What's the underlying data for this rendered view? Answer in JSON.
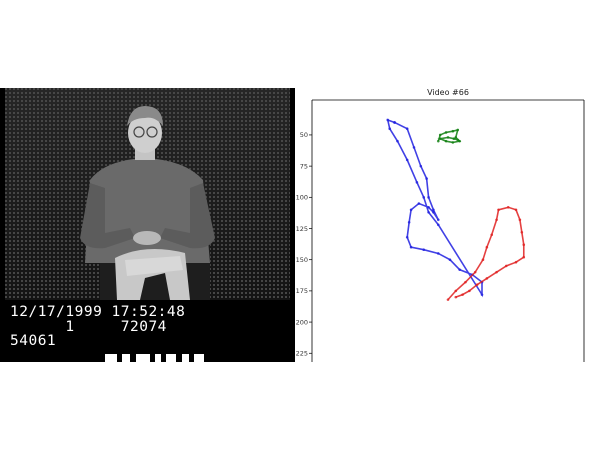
{
  "video": {
    "datetime_line": "12/17/1999 17:52:48",
    "counter_line": "      1     72074",
    "frame_line": "54061"
  },
  "chart_data": {
    "type": "line",
    "title": "Video #66",
    "xlabel": "",
    "ylabel": "",
    "y_axis_inverted": true,
    "ylim": [
      230,
      20
    ],
    "yticks": [
      50,
      75,
      100,
      125,
      150,
      175,
      200,
      225
    ],
    "x_ticks_visible": false,
    "grid": false,
    "series": [
      {
        "color": "#2020e0",
        "points": [
          [
            105,
            40
          ],
          [
            118,
            45
          ],
          [
            125,
            60
          ],
          [
            132,
            75
          ],
          [
            138,
            85
          ],
          [
            140,
            100
          ],
          [
            145,
            110
          ],
          [
            150,
            118
          ],
          [
            145,
            112
          ],
          [
            140,
            108
          ],
          [
            130,
            105
          ],
          [
            122,
            110
          ],
          [
            120,
            120
          ],
          [
            118,
            132
          ],
          [
            122,
            140
          ],
          [
            135,
            142
          ],
          [
            150,
            145
          ],
          [
            162,
            150
          ],
          [
            172,
            158
          ],
          [
            185,
            162
          ],
          [
            195,
            168
          ],
          [
            195,
            178
          ],
          [
            150,
            122
          ],
          [
            140,
            112
          ],
          [
            135,
            100
          ],
          [
            128,
            88
          ],
          [
            118,
            70
          ],
          [
            108,
            55
          ],
          [
            100,
            45
          ],
          [
            98,
            38
          ],
          [
            105,
            40
          ]
        ]
      },
      {
        "color": "#e02020",
        "points": [
          [
            160,
            182
          ],
          [
            168,
            175
          ],
          [
            178,
            168
          ],
          [
            188,
            160
          ],
          [
            196,
            150
          ],
          [
            200,
            140
          ],
          [
            205,
            130
          ],
          [
            210,
            118
          ],
          [
            212,
            110
          ],
          [
            222,
            108
          ],
          [
            230,
            110
          ],
          [
            234,
            118
          ],
          [
            236,
            128
          ],
          [
            238,
            138
          ],
          [
            238,
            148
          ],
          [
            230,
            152
          ],
          [
            220,
            155
          ],
          [
            210,
            160
          ],
          [
            200,
            165
          ],
          [
            190,
            170
          ],
          [
            182,
            175
          ],
          [
            175,
            178
          ],
          [
            168,
            180
          ]
        ]
      },
      {
        "color": "#108010",
        "points": [
          [
            150,
            55
          ],
          [
            152,
            50
          ],
          [
            158,
            48
          ],
          [
            165,
            47
          ],
          [
            170,
            46
          ],
          [
            168,
            52
          ],
          [
            172,
            55
          ],
          [
            165,
            56
          ],
          [
            158,
            55
          ],
          [
            152,
            53
          ],
          [
            160,
            52
          ],
          [
            166,
            53
          ],
          [
            170,
            54
          ]
        ]
      }
    ]
  }
}
